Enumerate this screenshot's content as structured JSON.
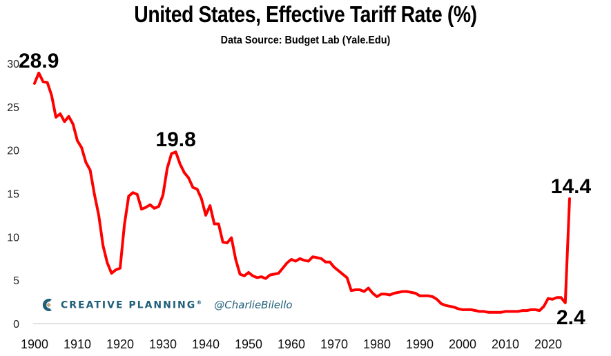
{
  "chart_data": {
    "type": "line",
    "title": "United States, Effective Tariff Rate (%)",
    "subtitle": "Data Source: Budget Lab (Yale.Edu)",
    "xlabel": "",
    "ylabel": "",
    "xlim": [
      1900,
      2025
    ],
    "ylim": [
      0,
      30
    ],
    "yticks": [
      "0",
      "5",
      "10",
      "15",
      "20",
      "25",
      "30"
    ],
    "xticks": [
      "1900",
      "1910",
      "1920",
      "1930",
      "1940",
      "1950",
      "1960",
      "1970",
      "1980",
      "1990",
      "2000",
      "2010",
      "2020"
    ],
    "grid": false,
    "legend": "none",
    "line_color": "#ff0000",
    "series": [
      {
        "name": "Effective Tariff Rate (%)",
        "x": [
          1900,
          1901,
          1902,
          1903,
          1904,
          1905,
          1906,
          1907,
          1908,
          1909,
          1910,
          1911,
          1912,
          1913,
          1914,
          1915,
          1916,
          1917,
          1918,
          1919,
          1920,
          1921,
          1922,
          1923,
          1924,
          1925,
          1926,
          1927,
          1928,
          1929,
          1930,
          1931,
          1932,
          1933,
          1934,
          1935,
          1936,
          1937,
          1938,
          1939,
          1940,
          1941,
          1942,
          1943,
          1944,
          1945,
          1946,
          1947,
          1948,
          1949,
          1950,
          1951,
          1952,
          1953,
          1954,
          1955,
          1956,
          1957,
          1958,
          1959,
          1960,
          1961,
          1962,
          1963,
          1964,
          1965,
          1966,
          1967,
          1968,
          1969,
          1970,
          1971,
          1972,
          1973,
          1974,
          1975,
          1976,
          1977,
          1978,
          1979,
          1980,
          1981,
          1982,
          1983,
          1984,
          1985,
          1986,
          1987,
          1988,
          1989,
          1990,
          1991,
          1992,
          1993,
          1994,
          1995,
          1996,
          1997,
          1998,
          1999,
          2000,
          2001,
          2002,
          2003,
          2004,
          2005,
          2006,
          2007,
          2008,
          2009,
          2010,
          2011,
          2012,
          2013,
          2014,
          2015,
          2016,
          2017,
          2018,
          2019,
          2020,
          2021,
          2022,
          2023,
          2024,
          2025
        ],
        "values": [
          27.7,
          28.9,
          27.9,
          27.8,
          26.3,
          23.8,
          24.2,
          23.3,
          23.9,
          23.0,
          21.1,
          20.3,
          18.6,
          17.7,
          14.9,
          12.5,
          9.0,
          7.0,
          5.8,
          6.2,
          6.4,
          11.4,
          14.7,
          15.1,
          14.9,
          13.2,
          13.4,
          13.7,
          13.3,
          13.5,
          14.8,
          17.9,
          19.6,
          19.8,
          18.4,
          17.4,
          16.8,
          15.7,
          15.5,
          14.4,
          12.5,
          13.6,
          11.5,
          11.5,
          9.4,
          9.3,
          9.9,
          7.4,
          5.7,
          5.5,
          5.9,
          5.5,
          5.3,
          5.4,
          5.2,
          5.6,
          5.7,
          5.8,
          6.4,
          7.0,
          7.4,
          7.2,
          7.5,
          7.3,
          7.2,
          7.7,
          7.6,
          7.5,
          7.1,
          7.1,
          6.5,
          6.1,
          5.7,
          5.3,
          3.8,
          3.9,
          3.9,
          3.7,
          4.1,
          3.5,
          3.1,
          3.4,
          3.4,
          3.3,
          3.5,
          3.6,
          3.7,
          3.7,
          3.6,
          3.5,
          3.2,
          3.2,
          3.2,
          3.1,
          2.8,
          2.3,
          2.1,
          2.0,
          1.9,
          1.7,
          1.6,
          1.6,
          1.6,
          1.5,
          1.4,
          1.4,
          1.3,
          1.3,
          1.3,
          1.3,
          1.4,
          1.4,
          1.4,
          1.4,
          1.5,
          1.5,
          1.6,
          1.6,
          1.5,
          2.0,
          2.9,
          2.8,
          3.0,
          3.0,
          2.4,
          14.4
        ]
      }
    ],
    "annotations": [
      {
        "label": "28.9",
        "x": 1901,
        "y": 28.9,
        "position": "above"
      },
      {
        "label": "19.8",
        "x": 1933,
        "y": 19.8,
        "position": "above"
      },
      {
        "label": "14.4",
        "x": 2025,
        "y": 14.4,
        "position": "above"
      },
      {
        "label": "2.4",
        "x": 2024,
        "y": 2.4,
        "position": "below"
      }
    ]
  },
  "watermark": {
    "brand": "CREATIVE PLANNING",
    "registered_mark": "®",
    "handle": "@CharlieBilello",
    "brand_color": "#1f5f7a",
    "logo_accent_color": "#c2a97e"
  }
}
